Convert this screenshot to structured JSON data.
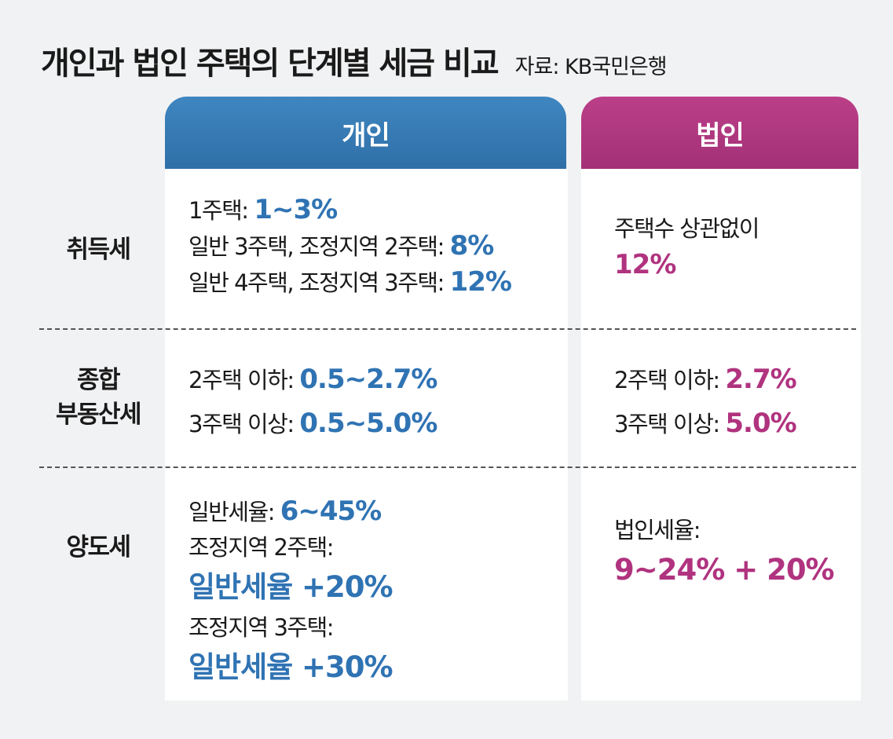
{
  "title": "개인과 법인 주택의 단계별 세금 비교",
  "source": "자료: KB국민은행",
  "columns": {
    "personal": "개인",
    "corporate": "법인"
  },
  "rows": {
    "acquisition": {
      "label": "취득세",
      "personal": [
        {
          "text": "1주택: ",
          "value": "1~3%"
        },
        {
          "text": "일반 3주택, 조정지역 2주택: ",
          "value": "8%"
        },
        {
          "text": "일반 4주택, 조정지역 3주택: ",
          "value": "12%"
        }
      ],
      "corporate": {
        "text": "주택수 상관없이",
        "value": "12%"
      }
    },
    "comprehensive": {
      "label_line1": "종합",
      "label_line2": "부동산세",
      "personal": [
        {
          "text": "2주택 이하: ",
          "value": "0.5~2.7%"
        },
        {
          "text": "3주택 이상: ",
          "value": "0.5~5.0%"
        }
      ],
      "corporate": [
        {
          "text": "2주택 이하: ",
          "value": "2.7%"
        },
        {
          "text": "3주택 이상: ",
          "value": "5.0%"
        }
      ]
    },
    "transfer": {
      "label": "양도세",
      "personal": {
        "general_text": "일반세율: ",
        "general_value": "6~45%",
        "adj2_text": "조정지역 2주택:",
        "adj2_value": "일반세율 +20%",
        "adj3_text": "조정지역 3주택:",
        "adj3_value": "일반세율 +30%"
      },
      "corporate": {
        "text": "법인세율:",
        "value": "9~24% + 20%"
      }
    }
  },
  "colors": {
    "personal": "#2f73b3",
    "corporate": "#b0337f",
    "background": "#f1f2f3"
  }
}
